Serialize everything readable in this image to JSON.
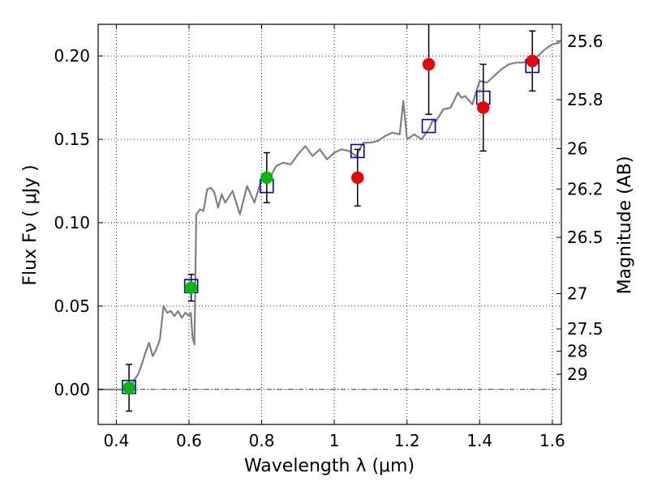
{
  "chart_data": {
    "type": "scatter",
    "xlabel": "Wavelength  λ (μm)",
    "ylabel": "Flux  Fν  ( μJy )",
    "y2label": "Magnitude (AB)",
    "xlim": [
      0.35,
      1.625
    ],
    "ylim": [
      -0.021,
      0.219
    ],
    "x_ticks": [
      0.4,
      0.6,
      0.8,
      1.0,
      1.2,
      1.4,
      1.6
    ],
    "x_tick_labels": [
      "0.4",
      "0.6",
      "0.8",
      "1",
      "1.2",
      "1.4",
      "1.6"
    ],
    "y_ticks": [
      0.0,
      0.05,
      0.1,
      0.15,
      0.2
    ],
    "y_tick_labels": [
      "0.00",
      "0.05",
      "0.10",
      "0.15",
      "0.20"
    ],
    "mag_ticks": [
      {
        "label": "25.6",
        "flux": 0.2089
      },
      {
        "label": "25.8",
        "flux": 0.1738
      },
      {
        "label": "26",
        "flux": 0.1445
      },
      {
        "label": "26.2",
        "flux": 0.1202
      },
      {
        "label": "26.5",
        "flux": 0.0912
      },
      {
        "label": "27",
        "flux": 0.0575
      },
      {
        "label": "27.5",
        "flux": 0.0363
      },
      {
        "label": "28",
        "flux": 0.0229
      },
      {
        "label": "29",
        "flux": 0.0091
      }
    ],
    "grid": true,
    "series": [
      {
        "name": "model_spectrum",
        "kind": "line",
        "color": "#808080",
        "x": [
          0.35,
          0.44,
          0.45,
          0.46,
          0.47,
          0.48,
          0.49,
          0.5,
          0.51,
          0.52,
          0.53,
          0.54,
          0.55,
          0.56,
          0.57,
          0.58,
          0.59,
          0.6,
          0.605,
          0.61,
          0.615,
          0.62,
          0.63,
          0.64,
          0.65,
          0.66,
          0.67,
          0.68,
          0.69,
          0.7,
          0.72,
          0.74,
          0.76,
          0.78,
          0.8,
          0.82,
          0.84,
          0.86,
          0.88,
          0.9,
          0.92,
          0.94,
          0.96,
          0.98,
          1.0,
          1.02,
          1.04,
          1.06,
          1.08,
          1.1,
          1.12,
          1.14,
          1.16,
          1.18,
          1.19,
          1.2,
          1.22,
          1.24,
          1.26,
          1.27,
          1.28,
          1.3,
          1.32,
          1.34,
          1.35,
          1.36,
          1.38,
          1.4,
          1.42,
          1.44,
          1.46,
          1.48,
          1.5,
          1.52,
          1.54,
          1.56,
          1.58,
          1.6,
          1.62
        ],
        "y": [
          0.0,
          0.0,
          0.006,
          0.009,
          0.015,
          0.022,
          0.028,
          0.02,
          0.024,
          0.03,
          0.05,
          0.046,
          0.047,
          0.044,
          0.047,
          0.043,
          0.046,
          0.044,
          0.046,
          0.031,
          0.027,
          0.105,
          0.108,
          0.107,
          0.12,
          0.121,
          0.118,
          0.109,
          0.117,
          0.112,
          0.119,
          0.105,
          0.122,
          0.112,
          0.126,
          0.126,
          0.134,
          0.136,
          0.135,
          0.141,
          0.146,
          0.14,
          0.144,
          0.138,
          0.142,
          0.144,
          0.143,
          0.14,
          0.148,
          0.148,
          0.149,
          0.152,
          0.154,
          0.153,
          0.173,
          0.15,
          0.153,
          0.15,
          0.156,
          0.161,
          0.161,
          0.168,
          0.169,
          0.178,
          0.175,
          0.176,
          0.171,
          0.185,
          0.184,
          0.188,
          0.192,
          0.195,
          0.196,
          0.196,
          0.198,
          0.2,
          0.204,
          0.207,
          0.208
        ]
      },
      {
        "name": "model_photometry",
        "kind": "open-square",
        "color": "#0000cc",
        "x": [
          0.435,
          0.606,
          0.814,
          1.064,
          1.26,
          1.41,
          1.545
        ],
        "y": [
          0.0015,
          0.062,
          0.122,
          0.143,
          0.158,
          0.175,
          0.194
        ]
      },
      {
        "name": "observed_detections",
        "kind": "point-errorbar",
        "color": "#00bb00",
        "x": [
          0.435,
          0.606,
          0.814
        ],
        "y": [
          0.001,
          0.061,
          0.127
        ],
        "yerr": [
          0.014,
          0.008,
          0.015
        ]
      },
      {
        "name": "observed_nondetections",
        "kind": "point-errorbar",
        "color": "#ee0000",
        "x": [
          1.064,
          1.26,
          1.41,
          1.545
        ],
        "y": [
          0.127,
          0.195,
          0.169,
          0.197
        ],
        "yerr": [
          0.017,
          0.03,
          0.026,
          0.018
        ]
      }
    ]
  }
}
